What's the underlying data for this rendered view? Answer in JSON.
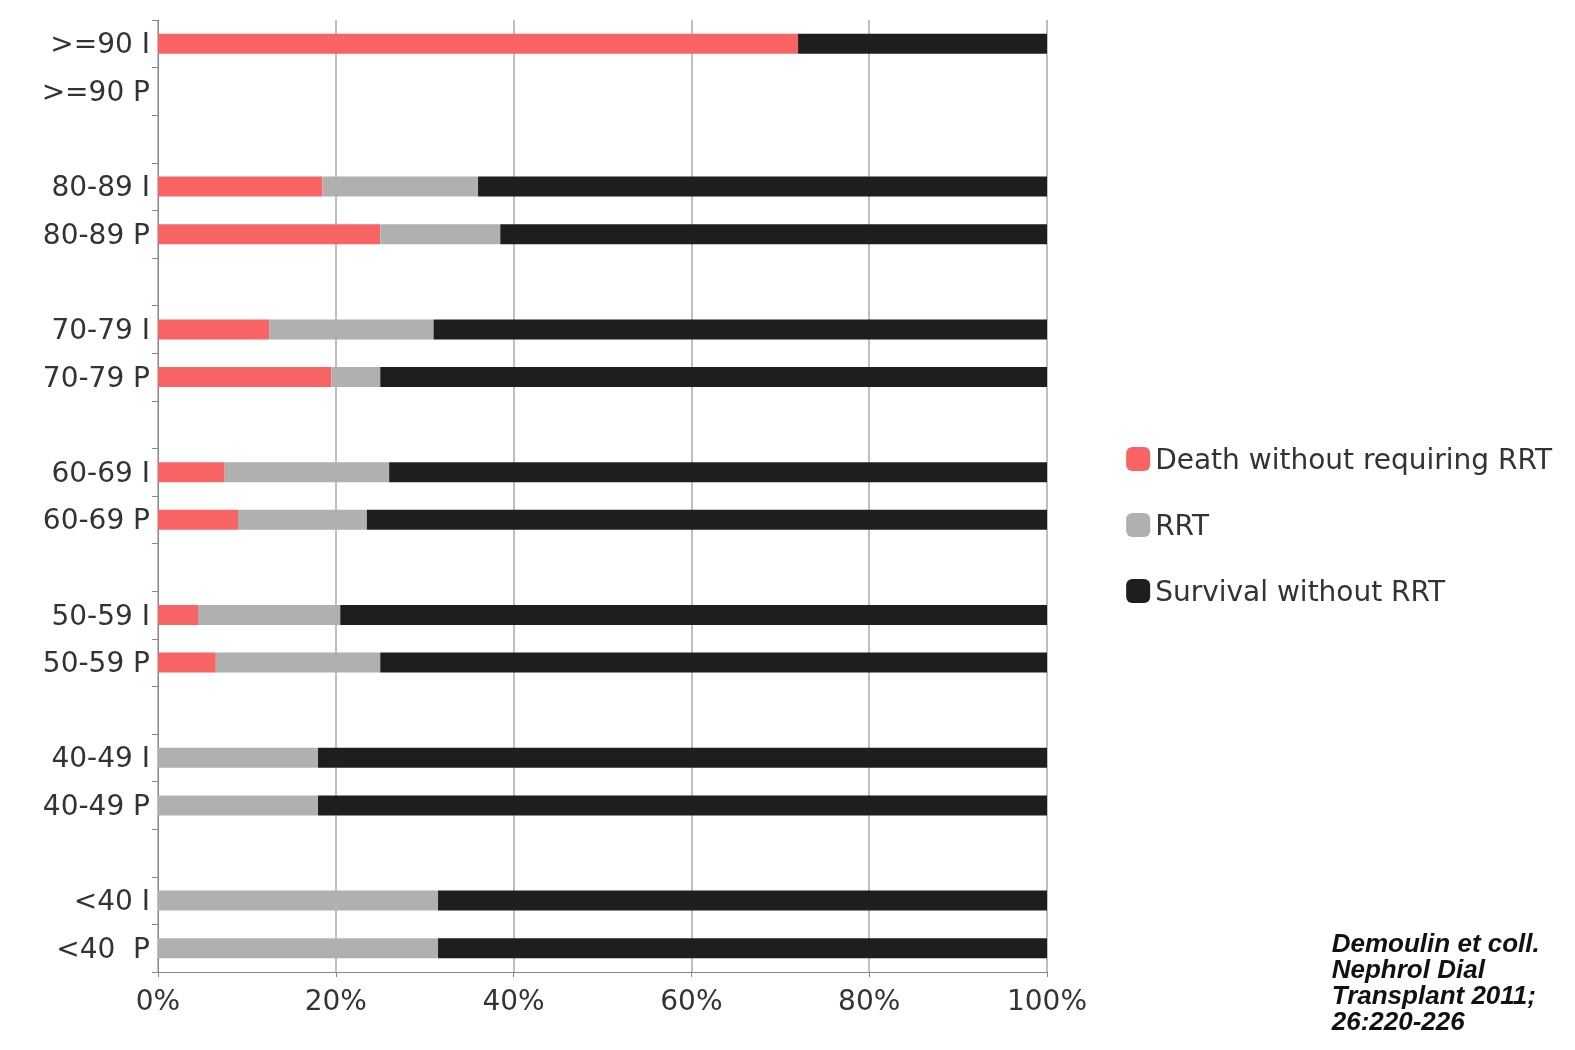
{
  "chart_data": {
    "type": "bar",
    "orientation": "horizontal",
    "stacked": true,
    "categories": [
      ">=90 I",
      ">=90 P",
      null,
      "80-89 I",
      "80-89 P",
      null,
      "70-79 I",
      "70-79 P",
      null,
      "60-69 I",
      "60-69 P",
      null,
      "50-59 I",
      "50-59 P",
      null,
      "40-49 I",
      "40-49 P",
      null,
      "<40 I",
      "<40  P"
    ],
    "series": [
      {
        "name": "Death without requiring RRT",
        "color": "#f86464",
        "values": [
          72,
          null,
          null,
          18.5,
          25,
          null,
          12.5,
          19.5,
          null,
          7.5,
          9,
          null,
          4.5,
          6.5,
          null,
          null,
          null,
          null,
          null,
          null
        ]
      },
      {
        "name": "RRT",
        "color": "#b0b0b0",
        "values": [
          null,
          null,
          null,
          17.5,
          13.5,
          null,
          18.5,
          5.5,
          null,
          18.5,
          14.5,
          null,
          16,
          18.5,
          null,
          18,
          18,
          null,
          31.5,
          31.5
        ]
      },
      {
        "name": "Survival without RRT",
        "color": "#1e1e1e",
        "values": [
          28,
          null,
          null,
          64,
          61.5,
          null,
          69,
          75,
          null,
          74,
          76.5,
          null,
          79.5,
          75,
          null,
          82,
          82,
          null,
          68.5,
          68.5
        ]
      }
    ],
    "xlim": [
      0,
      100
    ],
    "xticks": [
      {
        "value": 0,
        "label": "0%"
      },
      {
        "value": 20,
        "label": "20%"
      },
      {
        "value": 40,
        "label": "40%"
      },
      {
        "value": 60,
        "label": "60%"
      },
      {
        "value": 80,
        "label": "80%"
      },
      {
        "value": 100,
        "label": "100%"
      }
    ],
    "grid": "x",
    "legend": "right",
    "annotations": [
      "Demoulin et coll. Nephrol Dial Transplant 2011;26:220-226"
    ]
  }
}
